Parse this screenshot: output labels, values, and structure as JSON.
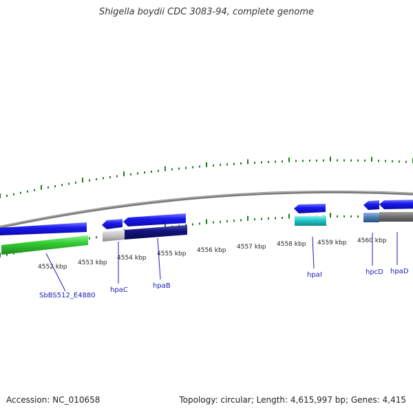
{
  "title": "Shigella boydii CDC 3083-94, complete genome",
  "footer": {
    "accession": "Accession: NC_010658",
    "summary": "Topology: circular; Length: 4,615,997 bp; Genes: 4,415"
  },
  "kbp_labels": [
    "4552 kbp",
    "4553 kbp",
    "4554 kbp",
    "4555 kbp",
    "4556 kbp",
    "4557 kbp",
    "4558 kbp",
    "4559 kbp",
    "4560 kbp"
  ],
  "gene_labels": [
    "SbBS512_E4880",
    "hpaC",
    "hpaB",
    "hpaI",
    "hpcD",
    "hpaD"
  ],
  "colors": {
    "backbone": "#8c8c8c",
    "tick": "#1a7a1a",
    "gene_blue": "#1515e6",
    "gene_navy": "#12127a",
    "gene_green": "#33cc33",
    "gene_cyan": "#22cccc",
    "gene_grey": "#bdbdbd",
    "gene_steel": "#4a7ab0",
    "gene_dark_grey": "#6e6e6e",
    "label": "#1a1ab4"
  }
}
